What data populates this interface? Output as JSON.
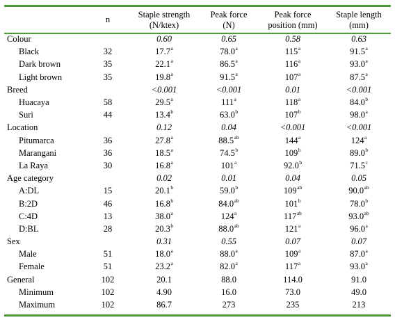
{
  "header": [
    "",
    "n",
    "Staple strength\n(N/ktex)",
    "Peak force\n(N)",
    "Peak force\nposition (mm)",
    "Staple length\n(mm)"
  ],
  "rows": [
    {
      "kind": "cat",
      "label": "Colour",
      "n": "",
      "vals": [
        [
          "0.60",
          ""
        ],
        [
          "0.65",
          ""
        ],
        [
          "0.58",
          ""
        ],
        [
          "0.63",
          ""
        ]
      ]
    },
    {
      "kind": "sub",
      "label": "Black",
      "n": "32",
      "vals": [
        [
          "17.7",
          "a"
        ],
        [
          "78.0",
          "a"
        ],
        [
          "115",
          "a"
        ],
        [
          "91.5",
          "a"
        ]
      ]
    },
    {
      "kind": "sub",
      "label": "Dark brown",
      "n": "35",
      "vals": [
        [
          "22.1",
          "a"
        ],
        [
          "86.5",
          "a"
        ],
        [
          "116",
          "a"
        ],
        [
          "93.0",
          "a"
        ]
      ]
    },
    {
      "kind": "sub",
      "label": "Light brown",
      "n": "35",
      "vals": [
        [
          "19.8",
          "a"
        ],
        [
          "91.5",
          "a"
        ],
        [
          "107",
          "a"
        ],
        [
          "87.5",
          "a"
        ]
      ]
    },
    {
      "kind": "cat",
      "label": "Breed",
      "n": "",
      "vals": [
        [
          "<0.001",
          ""
        ],
        [
          "<0.001",
          ""
        ],
        [
          "0.01",
          ""
        ],
        [
          "<0.001",
          ""
        ]
      ]
    },
    {
      "kind": "sub",
      "label": "Huacaya",
      "n": "58",
      "vals": [
        [
          "29.5",
          "a"
        ],
        [
          "111",
          "a"
        ],
        [
          "118",
          "a"
        ],
        [
          "84.0",
          "b"
        ]
      ]
    },
    {
      "kind": "sub",
      "label": "Suri",
      "n": "44",
      "vals": [
        [
          "13.4",
          "b"
        ],
        [
          "63.0",
          "b"
        ],
        [
          "107",
          "b"
        ],
        [
          "98.0",
          "a"
        ]
      ]
    },
    {
      "kind": "cat",
      "label": "Location",
      "n": "",
      "vals": [
        [
          "0.12",
          ""
        ],
        [
          "0.04",
          ""
        ],
        [
          "<0.001",
          ""
        ],
        [
          "<0.001",
          ""
        ]
      ]
    },
    {
      "kind": "sub",
      "label": "Pitumarca",
      "n": "36",
      "vals": [
        [
          "27.8",
          "a"
        ],
        [
          "88.5",
          "ab"
        ],
        [
          "144",
          "a"
        ],
        [
          "124",
          "a"
        ]
      ]
    },
    {
      "kind": "sub",
      "label": "Marangani",
      "n": "36",
      "vals": [
        [
          "18.5",
          "a"
        ],
        [
          "74.5",
          "b"
        ],
        [
          "109",
          "b"
        ],
        [
          "89.0",
          "b"
        ]
      ]
    },
    {
      "kind": "sub",
      "label": "La Raya",
      "n": "30",
      "vals": [
        [
          "16.8",
          "a"
        ],
        [
          "101",
          "a"
        ],
        [
          "92.0",
          "b"
        ],
        [
          "71.5",
          "c"
        ]
      ]
    },
    {
      "kind": "cat",
      "label": "Age category",
      "n": "",
      "vals": [
        [
          "0.02",
          ""
        ],
        [
          "0.01",
          ""
        ],
        [
          "0.04",
          ""
        ],
        [
          "0.05",
          ""
        ]
      ]
    },
    {
      "kind": "sub",
      "label": "A:DL",
      "n": "15",
      "vals": [
        [
          "20.1",
          "b"
        ],
        [
          "59.0",
          "b"
        ],
        [
          "109",
          "ab"
        ],
        [
          "90.0",
          "ab"
        ]
      ]
    },
    {
      "kind": "sub",
      "label": "B:2D",
      "n": "46",
      "vals": [
        [
          "16.8",
          "b"
        ],
        [
          "84.0",
          "ab"
        ],
        [
          "101",
          "b"
        ],
        [
          "78.0",
          "b"
        ]
      ]
    },
    {
      "kind": "sub",
      "label": "C:4D",
      "n": "13",
      "vals": [
        [
          "38.0",
          "a"
        ],
        [
          "124",
          "a"
        ],
        [
          "117",
          "ab"
        ],
        [
          "93.0",
          "ab"
        ]
      ]
    },
    {
      "kind": "sub",
      "label": "D:BL",
      "n": "28",
      "vals": [
        [
          "20.3",
          "b"
        ],
        [
          "88.0",
          "ab"
        ],
        [
          "121",
          "a"
        ],
        [
          "96.0",
          "a"
        ]
      ]
    },
    {
      "kind": "cat",
      "label": "Sex",
      "n": "",
      "vals": [
        [
          "0.31",
          ""
        ],
        [
          "0.55",
          ""
        ],
        [
          "0.07",
          ""
        ],
        [
          "0.07",
          ""
        ]
      ]
    },
    {
      "kind": "sub",
      "label": "Male",
      "n": "51",
      "vals": [
        [
          "18.0",
          "a"
        ],
        [
          "88.0",
          "a"
        ],
        [
          "109",
          "a"
        ],
        [
          "87.0",
          "a"
        ]
      ]
    },
    {
      "kind": "sub",
      "label": "Female",
      "n": "51",
      "vals": [
        [
          "23.2",
          "a"
        ],
        [
          "82.0",
          "a"
        ],
        [
          "117",
          "a"
        ],
        [
          "93.0",
          "a"
        ]
      ]
    },
    {
      "kind": "gen",
      "label": "General",
      "n": "102",
      "vals": [
        [
          "20.1",
          ""
        ],
        [
          "88.0",
          ""
        ],
        [
          "114.0",
          ""
        ],
        [
          "91.0",
          ""
        ]
      ]
    },
    {
      "kind": "sub",
      "label": "Minimum",
      "n": "102",
      "vals": [
        [
          "4.90",
          ""
        ],
        [
          "16.0",
          ""
        ],
        [
          "73.0",
          ""
        ],
        [
          "49.0",
          ""
        ]
      ]
    },
    {
      "kind": "sub",
      "label": "Maximum",
      "n": "102",
      "vals": [
        [
          "86.7",
          ""
        ],
        [
          "273",
          ""
        ],
        [
          "235",
          ""
        ],
        [
          "213",
          ""
        ]
      ]
    }
  ],
  "colors": {
    "rule": "#4a9a3a"
  }
}
